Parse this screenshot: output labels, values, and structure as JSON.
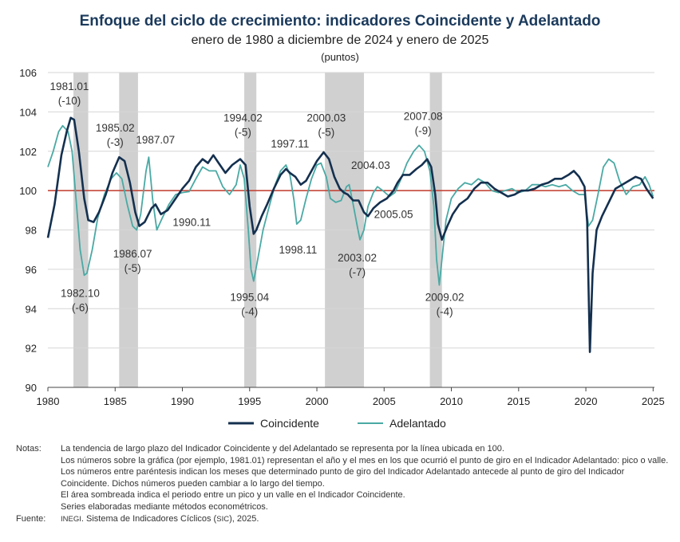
{
  "title": "Enfoque del ciclo de crecimiento: indicadores Coincidente y Adelantado",
  "subtitle": "enero de 1980 a diciembre de 2024 y enero de 2025",
  "units": "(puntos)",
  "legend": {
    "coincidente": "Coincidente",
    "adelantado": "Adelantado"
  },
  "notes": {
    "label": "Notas:",
    "lines": [
      "La tendencia de largo plazo del Indicador Coincidente y del Adelantado se representa por la línea ubicada en 100.",
      "Los números sobre la gráfica (por ejemplo, 1981.01) representan el año y el mes en los que ocurrió el punto de giro en el Indicador Adelantado: pico o valle.",
      "Los números entre paréntesis indican los meses que determinado punto de giro del Indicador Adelantado antecede al punto de giro del Indicador Coincidente. Dichos números pueden cambiar a lo largo del tiempo.",
      "El área sombreada indica el periodo entre un pico y un valle en el Indicador Coincidente.",
      "Series elaboradas mediante métodos econométricos."
    ]
  },
  "source": {
    "label": "Fuente:",
    "org": "INEGI",
    "text": ". Sistema de Indicadores Cíclicos (",
    "abbr": "SIC",
    "tail": "), 2025."
  },
  "colors": {
    "coincidente": "#14304f",
    "adelantado": "#4aa9a4",
    "trend": "#c0392b",
    "shade": "#d0d0d0",
    "grid": "#d6d6d6"
  },
  "chart_data": {
    "type": "line",
    "xlim": [
      1980,
      2025.1
    ],
    "ylim": [
      90,
      106
    ],
    "xticks": [
      1980,
      1985,
      1990,
      1995,
      2000,
      2005,
      2010,
      2015,
      2020,
      2025
    ],
    "yticks": [
      90,
      92,
      94,
      96,
      98,
      100,
      102,
      104,
      106
    ],
    "trend": 100,
    "shaded": [
      [
        1981.9,
        1983.0
      ],
      [
        1985.3,
        1986.7
      ],
      [
        1994.6,
        1995.5
      ],
      [
        2000.6,
        2003.5
      ],
      [
        2008.4,
        2009.3
      ]
    ],
    "series": [
      {
        "name": "Coincidente",
        "points": [
          [
            1980.0,
            97.6
          ],
          [
            1980.5,
            99.3
          ],
          [
            1981.0,
            101.8
          ],
          [
            1981.4,
            103.0
          ],
          [
            1981.7,
            103.7
          ],
          [
            1981.95,
            103.6
          ],
          [
            1982.3,
            102.0
          ],
          [
            1982.7,
            99.6
          ],
          [
            1983.0,
            98.5
          ],
          [
            1983.4,
            98.4
          ],
          [
            1983.8,
            98.9
          ],
          [
            1984.3,
            99.8
          ],
          [
            1984.8,
            100.9
          ],
          [
            1985.3,
            101.7
          ],
          [
            1985.7,
            101.5
          ],
          [
            1986.1,
            100.4
          ],
          [
            1986.5,
            98.9
          ],
          [
            1986.8,
            98.2
          ],
          [
            1987.2,
            98.4
          ],
          [
            1987.7,
            99.1
          ],
          [
            1988.0,
            99.3
          ],
          [
            1988.4,
            98.8
          ],
          [
            1988.9,
            99.0
          ],
          [
            1989.5,
            99.6
          ],
          [
            1990.0,
            100.1
          ],
          [
            1990.5,
            100.5
          ],
          [
            1991.0,
            101.2
          ],
          [
            1991.5,
            101.6
          ],
          [
            1991.9,
            101.4
          ],
          [
            1992.3,
            101.8
          ],
          [
            1992.7,
            101.4
          ],
          [
            1993.2,
            100.9
          ],
          [
            1993.7,
            101.3
          ],
          [
            1994.3,
            101.6
          ],
          [
            1994.7,
            101.3
          ],
          [
            1995.0,
            99.2
          ],
          [
            1995.3,
            97.8
          ],
          [
            1995.5,
            98.0
          ],
          [
            1995.9,
            98.7
          ],
          [
            1996.3,
            99.3
          ],
          [
            1996.8,
            100.1
          ],
          [
            1997.3,
            100.8
          ],
          [
            1997.7,
            101.1
          ],
          [
            1998.0,
            100.9
          ],
          [
            1998.4,
            100.7
          ],
          [
            1998.8,
            100.3
          ],
          [
            1999.2,
            100.5
          ],
          [
            1999.6,
            101.0
          ],
          [
            2000.0,
            101.5
          ],
          [
            2000.5,
            101.95
          ],
          [
            2000.9,
            101.6
          ],
          [
            2001.3,
            100.7
          ],
          [
            2001.7,
            100.1
          ],
          [
            2002.0,
            99.9
          ],
          [
            2002.3,
            99.8
          ],
          [
            2002.7,
            99.5
          ],
          [
            2003.1,
            99.5
          ],
          [
            2003.5,
            98.9
          ],
          [
            2003.8,
            98.7
          ],
          [
            2004.2,
            99.1
          ],
          [
            2004.7,
            99.4
          ],
          [
            2005.2,
            99.6
          ],
          [
            2005.7,
            100.0
          ],
          [
            2006.0,
            100.4
          ],
          [
            2006.4,
            100.8
          ],
          [
            2006.9,
            100.8
          ],
          [
            2007.4,
            101.1
          ],
          [
            2007.8,
            101.3
          ],
          [
            2008.2,
            101.6
          ],
          [
            2008.5,
            101.2
          ],
          [
            2008.8,
            99.8
          ],
          [
            2009.0,
            98.3
          ],
          [
            2009.3,
            97.5
          ],
          [
            2009.7,
            98.2
          ],
          [
            2010.1,
            98.8
          ],
          [
            2010.6,
            99.3
          ],
          [
            2011.2,
            99.6
          ],
          [
            2011.7,
            100.1
          ],
          [
            2012.2,
            100.4
          ],
          [
            2012.7,
            100.4
          ],
          [
            2013.2,
            100.1
          ],
          [
            2013.7,
            99.9
          ],
          [
            2014.2,
            99.7
          ],
          [
            2014.7,
            99.8
          ],
          [
            2015.2,
            100.0
          ],
          [
            2015.7,
            100.0
          ],
          [
            2016.2,
            100.1
          ],
          [
            2016.7,
            100.3
          ],
          [
            2017.2,
            100.4
          ],
          [
            2017.7,
            100.6
          ],
          [
            2018.2,
            100.6
          ],
          [
            2018.7,
            100.8
          ],
          [
            2019.1,
            101.0
          ],
          [
            2019.5,
            100.7
          ],
          [
            2019.9,
            100.2
          ],
          [
            2020.1,
            98.4
          ],
          [
            2020.3,
            91.8
          ],
          [
            2020.5,
            95.8
          ],
          [
            2020.8,
            98.0
          ],
          [
            2021.2,
            98.7
          ],
          [
            2021.7,
            99.4
          ],
          [
            2022.2,
            100.1
          ],
          [
            2022.7,
            100.3
          ],
          [
            2023.2,
            100.5
          ],
          [
            2023.7,
            100.7
          ],
          [
            2024.1,
            100.6
          ],
          [
            2024.5,
            100.1
          ],
          [
            2025.0,
            99.6
          ]
        ]
      },
      {
        "name": "Adelantado",
        "points": [
          [
            1980.0,
            101.2
          ],
          [
            1980.4,
            102.0
          ],
          [
            1980.8,
            103.0
          ],
          [
            1981.1,
            103.3
          ],
          [
            1981.5,
            103.0
          ],
          [
            1981.8,
            102.0
          ],
          [
            1982.1,
            99.5
          ],
          [
            1982.4,
            97.0
          ],
          [
            1982.7,
            95.7
          ],
          [
            1982.9,
            95.8
          ],
          [
            1983.3,
            97.0
          ],
          [
            1983.7,
            98.6
          ],
          [
            1984.2,
            99.8
          ],
          [
            1984.7,
            100.6
          ],
          [
            1985.1,
            100.9
          ],
          [
            1985.5,
            100.6
          ],
          [
            1985.9,
            99.3
          ],
          [
            1986.3,
            98.2
          ],
          [
            1986.6,
            98.0
          ],
          [
            1986.9,
            98.8
          ],
          [
            1987.3,
            101.0
          ],
          [
            1987.5,
            101.7
          ],
          [
            1987.8,
            99.5
          ],
          [
            1988.1,
            98.0
          ],
          [
            1988.5,
            98.6
          ],
          [
            1989.0,
            99.3
          ],
          [
            1989.5,
            99.8
          ],
          [
            1990.0,
            99.9
          ],
          [
            1990.5,
            99.95
          ],
          [
            1991.0,
            100.6
          ],
          [
            1991.5,
            101.2
          ],
          [
            1992.0,
            101.0
          ],
          [
            1992.5,
            101.0
          ],
          [
            1993.0,
            100.2
          ],
          [
            1993.5,
            99.8
          ],
          [
            1994.0,
            100.3
          ],
          [
            1994.3,
            101.3
          ],
          [
            1994.6,
            100.6
          ],
          [
            1994.9,
            98.0
          ],
          [
            1995.1,
            96.0
          ],
          [
            1995.3,
            95.4
          ],
          [
            1995.6,
            96.5
          ],
          [
            1996.0,
            98.0
          ],
          [
            1996.5,
            99.3
          ],
          [
            1996.9,
            100.3
          ],
          [
            1997.3,
            101.0
          ],
          [
            1997.7,
            101.3
          ],
          [
            1998.0,
            100.8
          ],
          [
            1998.3,
            99.5
          ],
          [
            1998.5,
            98.3
          ],
          [
            1998.8,
            98.5
          ],
          [
            1999.2,
            99.6
          ],
          [
            1999.6,
            100.6
          ],
          [
            2000.0,
            101.3
          ],
          [
            2000.3,
            101.4
          ],
          [
            2000.7,
            100.7
          ],
          [
            2001.0,
            99.6
          ],
          [
            2001.4,
            99.4
          ],
          [
            2001.8,
            99.5
          ],
          [
            2002.2,
            100.2
          ],
          [
            2002.4,
            100.3
          ],
          [
            2002.7,
            99.3
          ],
          [
            2003.0,
            98.2
          ],
          [
            2003.2,
            97.5
          ],
          [
            2003.5,
            98.0
          ],
          [
            2003.8,
            99.2
          ],
          [
            2004.2,
            99.9
          ],
          [
            2004.5,
            100.2
          ],
          [
            2004.9,
            100.0
          ],
          [
            2005.4,
            99.7
          ],
          [
            2005.8,
            99.9
          ],
          [
            2006.2,
            100.5
          ],
          [
            2006.7,
            101.4
          ],
          [
            2007.2,
            102.0
          ],
          [
            2007.6,
            102.3
          ],
          [
            2008.0,
            102.0
          ],
          [
            2008.4,
            101.0
          ],
          [
            2008.7,
            99.2
          ],
          [
            2008.9,
            96.5
          ],
          [
            2009.1,
            95.2
          ],
          [
            2009.3,
            96.5
          ],
          [
            2009.6,
            98.5
          ],
          [
            2010.0,
            99.6
          ],
          [
            2010.5,
            100.1
          ],
          [
            2011.0,
            100.4
          ],
          [
            2011.5,
            100.3
          ],
          [
            2012.0,
            100.6
          ],
          [
            2012.5,
            100.4
          ],
          [
            2013.0,
            100.0
          ],
          [
            2013.5,
            99.9
          ],
          [
            2014.0,
            100.0
          ],
          [
            2014.5,
            100.1
          ],
          [
            2015.0,
            99.9
          ],
          [
            2015.5,
            100.0
          ],
          [
            2016.0,
            100.3
          ],
          [
            2016.5,
            100.3
          ],
          [
            2017.0,
            100.2
          ],
          [
            2017.5,
            100.3
          ],
          [
            2018.0,
            100.2
          ],
          [
            2018.5,
            100.3
          ],
          [
            2019.0,
            100.0
          ],
          [
            2019.5,
            99.8
          ],
          [
            2019.9,
            99.8
          ],
          [
            2020.2,
            98.2
          ],
          [
            2020.5,
            98.5
          ],
          [
            2020.9,
            99.8
          ],
          [
            2021.3,
            101.2
          ],
          [
            2021.7,
            101.6
          ],
          [
            2022.1,
            101.4
          ],
          [
            2022.5,
            100.5
          ],
          [
            2023.0,
            99.8
          ],
          [
            2023.5,
            100.2
          ],
          [
            2024.0,
            100.3
          ],
          [
            2024.4,
            100.7
          ],
          [
            2024.7,
            100.3
          ],
          [
            2025.0,
            99.7
          ]
        ]
      }
    ],
    "annotations": [
      {
        "lines": [
          "1981.01",
          "(-10)"
        ],
        "at": [
          1981.6,
          105.1
        ]
      },
      {
        "lines": [
          "1982.10",
          "(-6)"
        ],
        "at": [
          1982.4,
          94.6
        ]
      },
      {
        "lines": [
          "1985.02",
          "(-3)"
        ],
        "at": [
          1985.0,
          103.0
        ]
      },
      {
        "lines": [
          "1987.07"
        ],
        "at": [
          1988.0,
          102.4
        ]
      },
      {
        "lines": [
          "1986.07",
          "(-5)"
        ],
        "at": [
          1986.3,
          96.6
        ]
      },
      {
        "lines": [
          "1990.11"
        ],
        "at": [
          1990.7,
          98.2
        ]
      },
      {
        "lines": [
          "1994.02",
          "(-5)"
        ],
        "at": [
          1994.5,
          103.5
        ]
      },
      {
        "lines": [
          "1995.04",
          "(-4)"
        ],
        "at": [
          1995.0,
          94.4
        ]
      },
      {
        "lines": [
          "1997.11"
        ],
        "at": [
          1998.0,
          102.2
        ]
      },
      {
        "lines": [
          "1998.11"
        ],
        "at": [
          1998.6,
          96.8
        ]
      },
      {
        "lines": [
          "2000.03",
          "(-5)"
        ],
        "at": [
          2000.7,
          103.5
        ]
      },
      {
        "lines": [
          "2004.03"
        ],
        "at": [
          2004.0,
          101.1
        ]
      },
      {
        "lines": [
          "2005.05"
        ],
        "at": [
          2005.7,
          98.6
        ]
      },
      {
        "lines": [
          "2003.02",
          "(-7)"
        ],
        "at": [
          2003.0,
          96.4
        ]
      },
      {
        "lines": [
          "2007.08",
          "(-9)"
        ],
        "at": [
          2007.9,
          103.6
        ]
      },
      {
        "lines": [
          "2009.02",
          "(-4)"
        ],
        "at": [
          2009.5,
          94.4
        ]
      }
    ]
  }
}
